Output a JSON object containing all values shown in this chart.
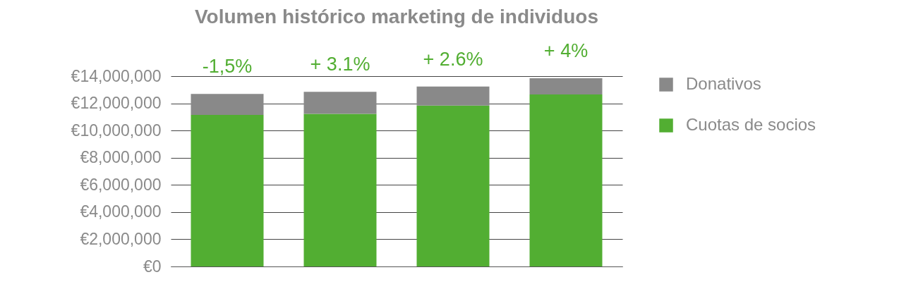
{
  "chart_data": {
    "type": "bar",
    "title": "Volumen histórico marketing de individuos",
    "categories": [
      null,
      null,
      null,
      null
    ],
    "stacked": true,
    "series": [
      {
        "name": "Cuotas de socios",
        "color": "#52ae32",
        "values": [
          11150000,
          11220000,
          11830000,
          12650000
        ]
      },
      {
        "name": "Donativos",
        "color": "#898989",
        "values": [
          1540000,
          1620000,
          1410000,
          1200000
        ]
      }
    ],
    "ylim": [
      0,
      14000000
    ],
    "yticks": [
      {
        "value": 0,
        "label": "€0"
      },
      {
        "value": 2000000,
        "label": "€2,000,000"
      },
      {
        "value": 4000000,
        "label": "€4,000,000"
      },
      {
        "value": 6000000,
        "label": "€6,000,000"
      },
      {
        "value": 8000000,
        "label": "€8,000,000"
      },
      {
        "value": 10000000,
        "label": "€10,000,000"
      },
      {
        "value": 12000000,
        "label": "€12,000,000"
      },
      {
        "value": 14000000,
        "label": "€14,000,000"
      }
    ],
    "grid": "y",
    "legend": "right",
    "annotations": [
      {
        "text": "-1,5%"
      },
      {
        "text": "+ 3.1%"
      },
      {
        "text": "+ 2.6%"
      },
      {
        "text": "+ 4%"
      }
    ]
  }
}
